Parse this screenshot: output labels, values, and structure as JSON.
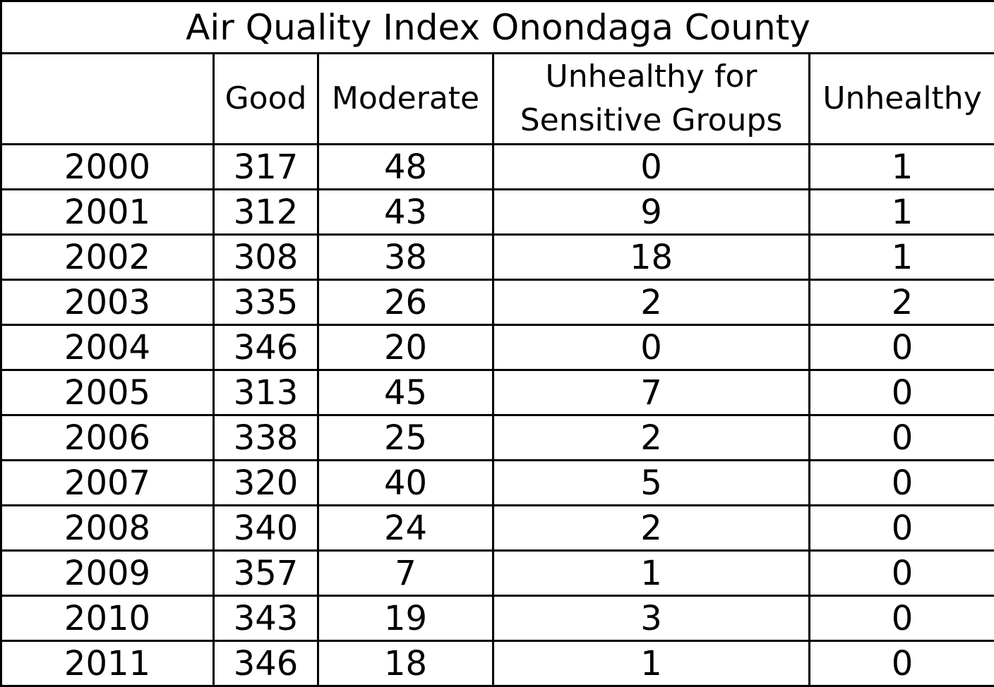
{
  "chart_data": {
    "type": "table",
    "title": "Air Quality Index Onondaga County",
    "columns": [
      "",
      "Good",
      "Moderate",
      "Unhealthy for Sensitive Groups",
      "Unhealthy"
    ],
    "header_lines": {
      "sensitive": [
        "Unhealthy for",
        "Sensitive Groups"
      ]
    },
    "rows": [
      {
        "year": "2000",
        "good": "317",
        "moderate": "48",
        "sensitive": "0",
        "unhealthy": "1"
      },
      {
        "year": "2001",
        "good": "312",
        "moderate": "43",
        "sensitive": "9",
        "unhealthy": "1"
      },
      {
        "year": "2002",
        "good": "308",
        "moderate": "38",
        "sensitive": "18",
        "unhealthy": "1"
      },
      {
        "year": "2003",
        "good": "335",
        "moderate": "26",
        "sensitive": "2",
        "unhealthy": "2"
      },
      {
        "year": "2004",
        "good": "346",
        "moderate": "20",
        "sensitive": "0",
        "unhealthy": "0"
      },
      {
        "year": "2005",
        "good": "313",
        "moderate": "45",
        "sensitive": "7",
        "unhealthy": "0"
      },
      {
        "year": "2006",
        "good": "338",
        "moderate": "25",
        "sensitive": "2",
        "unhealthy": "0"
      },
      {
        "year": "2007",
        "good": "320",
        "moderate": "40",
        "sensitive": "5",
        "unhealthy": "0"
      },
      {
        "year": "2008",
        "good": "340",
        "moderate": "24",
        "sensitive": "2",
        "unhealthy": "0"
      },
      {
        "year": "2009",
        "good": "357",
        "moderate": "7",
        "sensitive": "1",
        "unhealthy": "0"
      },
      {
        "year": "2010",
        "good": "343",
        "moderate": "19",
        "sensitive": "3",
        "unhealthy": "0"
      },
      {
        "year": "2011",
        "good": "346",
        "moderate": "18",
        "sensitive": "1",
        "unhealthy": "0"
      }
    ]
  }
}
